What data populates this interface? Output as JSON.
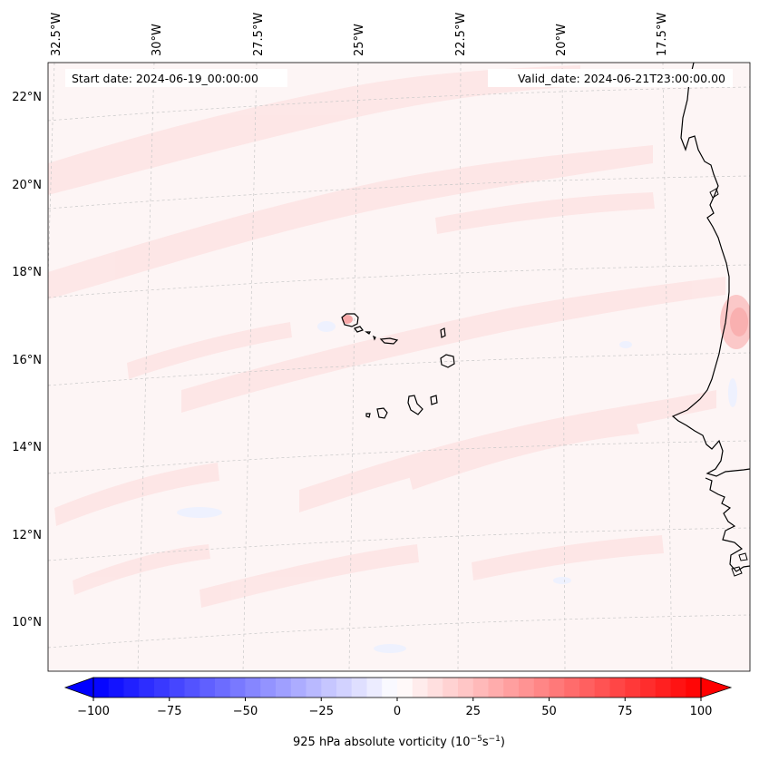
{
  "map": {
    "start_date_text": "Start date: 2024-06-19_00:00:00",
    "valid_date_text": "Valid_date: 2024-06-21T23:00:00.00",
    "lon_labels": [
      "32.5°W",
      "30°W",
      "27.5°W",
      "25°W",
      "22.5°W",
      "20°W",
      "17.5°W"
    ],
    "lat_labels": [
      "22°N",
      "20°N",
      "18°N",
      "16°N",
      "14°N",
      "12°N",
      "10°N"
    ],
    "region": "Cabo Verde and West African coast",
    "field_colors": {
      "background": "#fdf4f4",
      "band": "#fde6e6",
      "strong": "#fbd0d0",
      "negative": "#f2f4fe"
    }
  },
  "colorbar": {
    "label_prefix": "925 hPa absolute vorticity (10",
    "label_exp1": "−5",
    "label_mid": "s",
    "label_exp2": "−1",
    "label_suffix": ")",
    "tick_labels": [
      "−100",
      "−75",
      "−50",
      "−25",
      "0",
      "25",
      "50",
      "75",
      "100"
    ],
    "min": -100,
    "max": 100,
    "step": 5,
    "color_min": "#0000ff",
    "color_mid": "#ffffff",
    "color_max": "#ff0000"
  }
}
